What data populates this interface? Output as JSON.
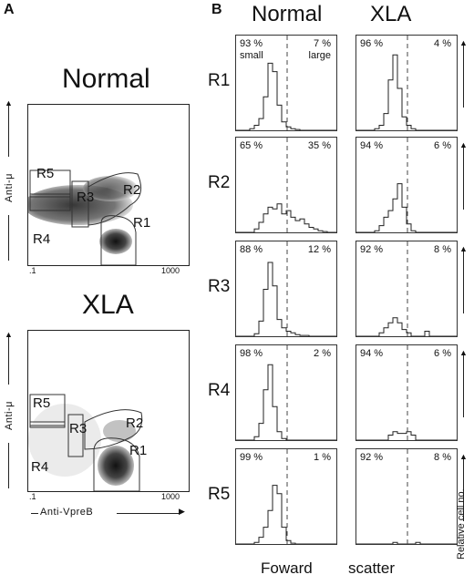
{
  "panel_a": {
    "letter": "A",
    "normal": {
      "title": "Normal",
      "ylabel": "Anti-μ",
      "xmin": ".1",
      "xmax": "1000",
      "regions": [
        "R5",
        "R3",
        "R2",
        "R4",
        "R1"
      ]
    },
    "xla": {
      "title": "XLA",
      "ylabel": "Anti-μ",
      "xmin": ".1",
      "xmax": "1000",
      "xlabel": "Anti-VpreB",
      "regions": [
        "R5",
        "R3",
        "R2",
        "R4",
        "R1"
      ]
    }
  },
  "panel_b": {
    "letter": "B",
    "col_normal": "Normal",
    "col_xla": "XLA",
    "rows": [
      "R1",
      "R2",
      "R3",
      "R4",
      "R5"
    ],
    "normal": [
      {
        "left": "93 %",
        "right": "7 %",
        "left_sub": "small",
        "right_sub": "large"
      },
      {
        "left": "65 %",
        "right": "35 %"
      },
      {
        "left": "88 %",
        "right": "12 %"
      },
      {
        "left": "98 %",
        "right": "2 %"
      },
      {
        "left": "99 %",
        "right": "1 %"
      }
    ],
    "xla": [
      {
        "left": "96 %",
        "right": "4 %"
      },
      {
        "left": "94 %",
        "right": "6 %"
      },
      {
        "left": "92 %",
        "right": "8 %"
      },
      {
        "left": "94 %",
        "right": "6 %"
      },
      {
        "left": "92 %",
        "right": "8 %"
      }
    ],
    "xlabel_1": "Foward",
    "xlabel_2": "scatter",
    "ylabel": "Relative cell no."
  }
}
